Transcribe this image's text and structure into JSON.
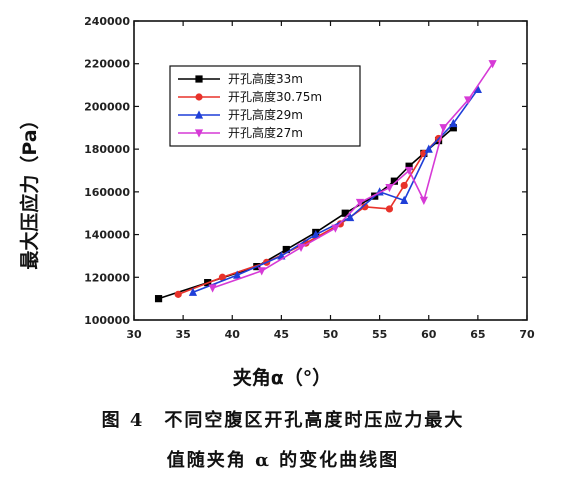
{
  "chart_data": {
    "type": "line",
    "title": "",
    "xlabel": "夹角α（°）",
    "ylabel": "最大压应力（Pa）",
    "xlim": [
      30,
      70
    ],
    "ylim": [
      100000,
      240000
    ],
    "x_ticks": [
      30,
      35,
      40,
      45,
      50,
      55,
      60,
      65,
      70
    ],
    "y_ticks": [
      100000,
      120000,
      140000,
      160000,
      180000,
      200000,
      220000,
      240000
    ],
    "x_tick_labels": [
      "30",
      "35",
      "40",
      "45",
      "50",
      "55",
      "60",
      "65",
      "70"
    ],
    "y_tick_labels": [
      "100000",
      "120000",
      "140000",
      "160000",
      "180000",
      "200000",
      "220000",
      "240000"
    ],
    "grid": false,
    "legend_position": "top-left",
    "series": [
      {
        "name": "开孔高度33m",
        "color": "#000000",
        "marker": "square",
        "x": [
          32.5,
          37.5,
          42.5,
          45.5,
          48.5,
          51.5,
          54.5,
          56.5,
          58,
          59.5,
          61,
          62.5
        ],
        "y": [
          110000,
          117500,
          125000,
          133000,
          141000,
          150000,
          158000,
          165000,
          172000,
          178000,
          184000,
          190000
        ]
      },
      {
        "name": "开孔高度30.75m",
        "color": "#e8322a",
        "marker": "circle",
        "x": [
          34.5,
          39,
          43.5,
          47.5,
          51,
          53.5,
          56,
          57.5,
          59.5,
          61
        ],
        "y": [
          112000,
          120000,
          127000,
          136000,
          145000,
          153000,
          152000,
          163000,
          178000,
          185000
        ]
      },
      {
        "name": "开孔高度29m",
        "color": "#1f3fd8",
        "marker": "triangle-up",
        "x": [
          36,
          40.5,
          45,
          48.5,
          52,
          55,
          57.5,
          60,
          62.5,
          65
        ],
        "y": [
          113000,
          121000,
          130000,
          140000,
          148000,
          160000,
          156000,
          180000,
          192000,
          208000
        ]
      },
      {
        "name": "开孔高度27m",
        "color": "#d63ad6",
        "marker": "triangle-down",
        "x": [
          38,
          43,
          47,
          50.5,
          53,
          56,
          58,
          59.5,
          61.5,
          64,
          66.5
        ],
        "y": [
          115000,
          123000,
          134000,
          143000,
          155000,
          162000,
          170000,
          156000,
          190000,
          203000,
          220000
        ]
      }
    ]
  },
  "caption": {
    "line1": "图 4　不同空腹区开孔高度时压应力最大",
    "line2": "值随夹角 α 的变化曲线图"
  }
}
